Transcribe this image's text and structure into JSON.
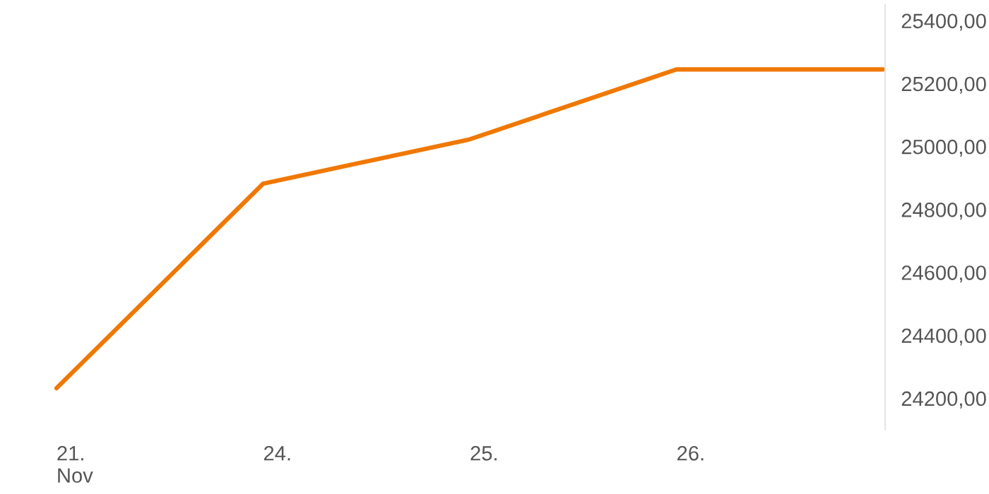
{
  "chart_data": {
    "type": "line",
    "categories": [
      "21.\nNov",
      "24.",
      "25.",
      "26.",
      null
    ],
    "series": [
      {
        "color": "#f07800",
        "values": [
          24232,
          24882,
          25023,
          25245,
          25245
        ]
      }
    ],
    "ylim": [
      24100,
      25450
    ],
    "yticks": [
      {
        "value": 24200,
        "label": "24200,00"
      },
      {
        "value": 24400,
        "label": "24400,00"
      },
      {
        "value": 24600,
        "label": "24600,00"
      },
      {
        "value": 24800,
        "label": "24800,00"
      },
      {
        "value": 25000,
        "label": "25000,00"
      },
      {
        "value": 25200,
        "label": "25200,00"
      },
      {
        "value": 25400,
        "label": "25400,00"
      }
    ],
    "grid": false,
    "marker": "none",
    "line_style": "solid"
  }
}
